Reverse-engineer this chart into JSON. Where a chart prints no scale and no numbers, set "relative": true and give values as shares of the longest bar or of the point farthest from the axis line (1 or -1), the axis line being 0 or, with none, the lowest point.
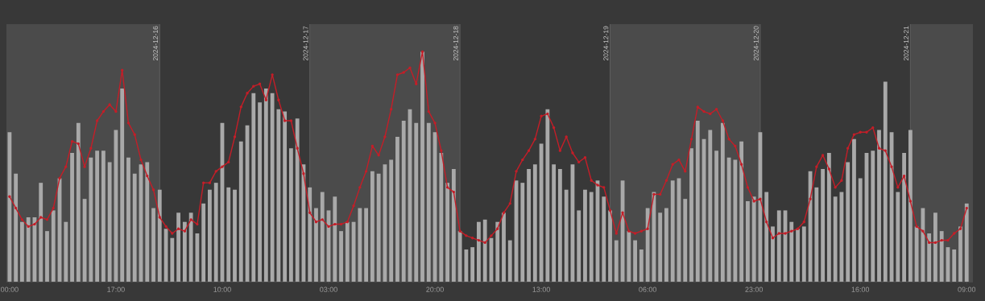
{
  "chart_data": {
    "type": "bar",
    "relative": true,
    "x": [
      "2024-12-15T00:00",
      "2024-12-15T01:00",
      "2024-12-15T02:00",
      "2024-12-15T03:00",
      "2024-12-15T04:00",
      "2024-12-15T05:00",
      "2024-12-15T06:00",
      "2024-12-15T07:00",
      "2024-12-15T08:00",
      "2024-12-15T09:00",
      "2024-12-15T10:00",
      "2024-12-15T11:00",
      "2024-12-15T12:00",
      "2024-12-15T13:00",
      "2024-12-15T14:00",
      "2024-12-15T15:00",
      "2024-12-15T16:00",
      "2024-12-15T17:00",
      "2024-12-15T18:00",
      "2024-12-15T19:00",
      "2024-12-15T20:00",
      "2024-12-15T21:00",
      "2024-12-15T22:00",
      "2024-12-15T23:00",
      "2024-12-16T00:00",
      "2024-12-16T01:00",
      "2024-12-16T02:00",
      "2024-12-16T03:00",
      "2024-12-16T04:00",
      "2024-12-16T05:00",
      "2024-12-16T06:00",
      "2024-12-16T07:00",
      "2024-12-16T08:00",
      "2024-12-16T09:00",
      "2024-12-16T10:00",
      "2024-12-16T11:00",
      "2024-12-16T12:00",
      "2024-12-16T13:00",
      "2024-12-16T14:00",
      "2024-12-16T15:00",
      "2024-12-16T16:00",
      "2024-12-16T17:00",
      "2024-12-16T18:00",
      "2024-12-16T19:00",
      "2024-12-16T20:00",
      "2024-12-16T21:00",
      "2024-12-16T22:00",
      "2024-12-16T23:00",
      "2024-12-17T00:00",
      "2024-12-17T01:00",
      "2024-12-17T02:00",
      "2024-12-17T03:00",
      "2024-12-17T04:00",
      "2024-12-17T05:00",
      "2024-12-17T06:00",
      "2024-12-17T07:00",
      "2024-12-17T08:00",
      "2024-12-17T09:00",
      "2024-12-17T10:00",
      "2024-12-17T11:00",
      "2024-12-17T12:00",
      "2024-12-17T13:00",
      "2024-12-17T14:00",
      "2024-12-17T15:00",
      "2024-12-17T16:00",
      "2024-12-17T17:00",
      "2024-12-17T18:00",
      "2024-12-17T19:00",
      "2024-12-17T20:00",
      "2024-12-17T21:00",
      "2024-12-17T22:00",
      "2024-12-17T23:00",
      "2024-12-18T00:00",
      "2024-12-18T01:00",
      "2024-12-18T02:00",
      "2024-12-18T03:00",
      "2024-12-18T04:00",
      "2024-12-18T05:00",
      "2024-12-18T06:00",
      "2024-12-18T07:00",
      "2024-12-18T08:00",
      "2024-12-18T09:00",
      "2024-12-18T10:00",
      "2024-12-18T11:00",
      "2024-12-18T12:00",
      "2024-12-18T13:00",
      "2024-12-18T14:00",
      "2024-12-18T15:00",
      "2024-12-18T16:00",
      "2024-12-18T17:00",
      "2024-12-18T18:00",
      "2024-12-18T19:00",
      "2024-12-18T20:00",
      "2024-12-18T21:00",
      "2024-12-18T22:00",
      "2024-12-18T23:00",
      "2024-12-19T00:00",
      "2024-12-19T01:00",
      "2024-12-19T02:00",
      "2024-12-19T03:00",
      "2024-12-19T04:00",
      "2024-12-19T05:00",
      "2024-12-19T06:00",
      "2024-12-19T07:00",
      "2024-12-19T08:00",
      "2024-12-19T09:00",
      "2024-12-19T10:00",
      "2024-12-19T11:00",
      "2024-12-19T12:00",
      "2024-12-19T13:00",
      "2024-12-19T14:00",
      "2024-12-19T15:00",
      "2024-12-19T16:00",
      "2024-12-19T17:00",
      "2024-12-19T18:00",
      "2024-12-19T19:00",
      "2024-12-19T20:00",
      "2024-12-19T21:00",
      "2024-12-19T22:00",
      "2024-12-19T23:00",
      "2024-12-20T00:00",
      "2024-12-20T01:00",
      "2024-12-20T02:00",
      "2024-12-20T03:00",
      "2024-12-20T04:00",
      "2024-12-20T05:00",
      "2024-12-20T06:00",
      "2024-12-20T07:00",
      "2024-12-20T08:00",
      "2024-12-20T09:00",
      "2024-12-20T10:00",
      "2024-12-20T11:00",
      "2024-12-20T12:00",
      "2024-12-20T13:00",
      "2024-12-20T14:00",
      "2024-12-20T15:00",
      "2024-12-20T16:00",
      "2024-12-20T17:00",
      "2024-12-20T18:00",
      "2024-12-20T19:00",
      "2024-12-20T20:00",
      "2024-12-20T21:00",
      "2024-12-20T22:00",
      "2024-12-20T23:00",
      "2024-12-21T00:00",
      "2024-12-21T01:00",
      "2024-12-21T02:00",
      "2024-12-21T03:00",
      "2024-12-21T04:00",
      "2024-12-21T05:00",
      "2024-12-21T06:00",
      "2024-12-21T07:00",
      "2024-12-21T08:00",
      "2024-12-21T09:00"
    ],
    "xlim": [
      "2024-12-14T23:30",
      "2024-12-21T10:00"
    ],
    "xticks": [
      {
        "value": "2024-12-15T00:00",
        "label": "00:00"
      },
      {
        "value": "2024-12-15T17:00",
        "label": "17:00"
      },
      {
        "value": "2024-12-16T10:00",
        "label": "10:00"
      },
      {
        "value": "2024-12-17T03:00",
        "label": "03:00"
      },
      {
        "value": "2024-12-17T20:00",
        "label": "20:00"
      },
      {
        "value": "2024-12-18T13:00",
        "label": "13:00"
      },
      {
        "value": "2024-12-19T06:00",
        "label": "06:00"
      },
      {
        "value": "2024-12-19T23:00",
        "label": "23:00"
      },
      {
        "value": "2024-12-20T16:00",
        "label": "16:00"
      },
      {
        "value": "2024-12-21T09:00",
        "label": "09:00"
      }
    ],
    "series": [
      {
        "color": "#a9a9a9",
        "values": [
          0.65,
          0.47,
          0.26,
          0.28,
          0.28,
          0.43,
          0.22,
          0.31,
          0.45,
          0.26,
          0.56,
          0.69,
          0.36,
          0.54,
          0.57,
          0.57,
          0.52,
          0.66,
          0.84,
          0.54,
          0.47,
          0.51,
          0.52,
          0.32,
          0.4,
          0.23,
          0.19,
          0.3,
          0.26,
          0.3,
          0.21,
          0.34,
          0.4,
          0.43,
          0.69,
          0.41,
          0.4,
          0.61,
          0.68,
          0.82,
          0.78,
          0.84,
          0.82,
          0.75,
          0.74,
          0.58,
          0.71,
          0.51,
          0.41,
          0.32,
          0.39,
          0.31,
          0.37,
          0.22,
          0.26,
          0.26,
          0.32,
          0.32,
          0.48,
          0.47,
          0.51,
          0.53,
          0.63,
          0.7,
          0.75,
          0.69,
          1.0,
          0.69,
          0.65,
          0.56,
          0.43,
          0.49,
          0.22,
          0.14,
          0.15,
          0.26,
          0.27,
          0.19,
          0.26,
          0.3,
          0.18,
          0.44,
          0.43,
          0.49,
          0.51,
          0.6,
          0.75,
          0.51,
          0.49,
          0.4,
          0.51,
          0.31,
          0.4,
          0.39,
          0.44,
          0.37,
          0.31,
          0.18,
          0.44,
          0.22,
          0.18,
          0.14,
          0.32,
          0.39,
          0.3,
          0.32,
          0.44,
          0.45,
          0.36,
          0.58,
          0.7,
          0.62,
          0.66,
          0.57,
          0.69,
          0.54,
          0.53,
          0.61,
          0.35,
          0.37,
          0.65,
          0.39,
          0.24,
          0.31,
          0.31,
          0.26,
          0.23,
          0.24,
          0.48,
          0.41,
          0.49,
          0.56,
          0.37,
          0.39,
          0.52,
          0.62,
          0.45,
          0.56,
          0.57,
          0.66,
          0.87,
          0.65,
          0.39,
          0.56,
          0.66,
          0.24,
          0.32,
          0.21,
          0.3,
          0.22,
          0.15,
          0.14,
          0.24,
          0.34
        ]
      },
      {
        "type": "line",
        "color": "#c41e28",
        "marker": "circle",
        "values": [
          0.37,
          0.32,
          0.27,
          0.24,
          0.25,
          0.28,
          0.27,
          0.32,
          0.45,
          0.5,
          0.61,
          0.6,
          0.5,
          0.58,
          0.7,
          0.74,
          0.77,
          0.74,
          0.92,
          0.69,
          0.64,
          0.53,
          0.46,
          0.4,
          0.28,
          0.24,
          0.21,
          0.23,
          0.22,
          0.27,
          0.25,
          0.43,
          0.43,
          0.48,
          0.5,
          0.52,
          0.63,
          0.76,
          0.82,
          0.85,
          0.86,
          0.79,
          0.9,
          0.79,
          0.7,
          0.7,
          0.58,
          0.47,
          0.3,
          0.26,
          0.27,
          0.24,
          0.25,
          0.25,
          0.26,
          0.33,
          0.41,
          0.48,
          0.59,
          0.55,
          0.63,
          0.75,
          0.9,
          0.91,
          0.93,
          0.86,
          1.0,
          0.74,
          0.69,
          0.57,
          0.41,
          0.39,
          0.22,
          0.2,
          0.19,
          0.18,
          0.17,
          0.2,
          0.23,
          0.3,
          0.34,
          0.48,
          0.53,
          0.57,
          0.62,
          0.72,
          0.73,
          0.67,
          0.57,
          0.63,
          0.56,
          0.52,
          0.54,
          0.44,
          0.42,
          0.41,
          0.31,
          0.21,
          0.3,
          0.22,
          0.21,
          0.22,
          0.23,
          0.38,
          0.38,
          0.44,
          0.51,
          0.53,
          0.48,
          0.62,
          0.76,
          0.74,
          0.73,
          0.75,
          0.7,
          0.62,
          0.59,
          0.51,
          0.41,
          0.35,
          0.36,
          0.26,
          0.19,
          0.21,
          0.21,
          0.22,
          0.23,
          0.26,
          0.36,
          0.5,
          0.55,
          0.49,
          0.41,
          0.44,
          0.58,
          0.64,
          0.65,
          0.65,
          0.67,
          0.58,
          0.57,
          0.5,
          0.41,
          0.46,
          0.35,
          0.24,
          0.22,
          0.17,
          0.17,
          0.18,
          0.18,
          0.21,
          0.23,
          0.32
        ]
      }
    ],
    "bands": [
      {
        "axis": "x",
        "from": "2024-12-14T23:30",
        "to": "2024-12-16",
        "color": "#4b4b4b"
      },
      {
        "axis": "x",
        "from": "2024-12-17",
        "to": "2024-12-18",
        "color": "#4b4b4b"
      },
      {
        "axis": "x",
        "from": "2024-12-19",
        "to": "2024-12-20",
        "color": "#4b4b4b"
      },
      {
        "axis": "x",
        "from": "2024-12-21",
        "to": "2024-12-21T10:00",
        "color": "#4b4b4b"
      }
    ],
    "ref_lines": [
      {
        "axis": "x",
        "value": "2024-12-16",
        "label": "2024-12-16",
        "color": "#5e5e5e"
      },
      {
        "axis": "x",
        "value": "2024-12-17",
        "label": "2024-12-17",
        "color": "#5e5e5e"
      },
      {
        "axis": "x",
        "value": "2024-12-18",
        "label": "2024-12-18",
        "color": "#5e5e5e"
      },
      {
        "axis": "x",
        "value": "2024-12-19",
        "label": "2024-12-19",
        "color": "#5e5e5e"
      },
      {
        "axis": "x",
        "value": "2024-12-20",
        "label": "2024-12-20",
        "color": "#5e5e5e"
      },
      {
        "axis": "x",
        "value": "2024-12-21",
        "label": "2024-12-21",
        "color": "#5e5e5e"
      }
    ]
  }
}
